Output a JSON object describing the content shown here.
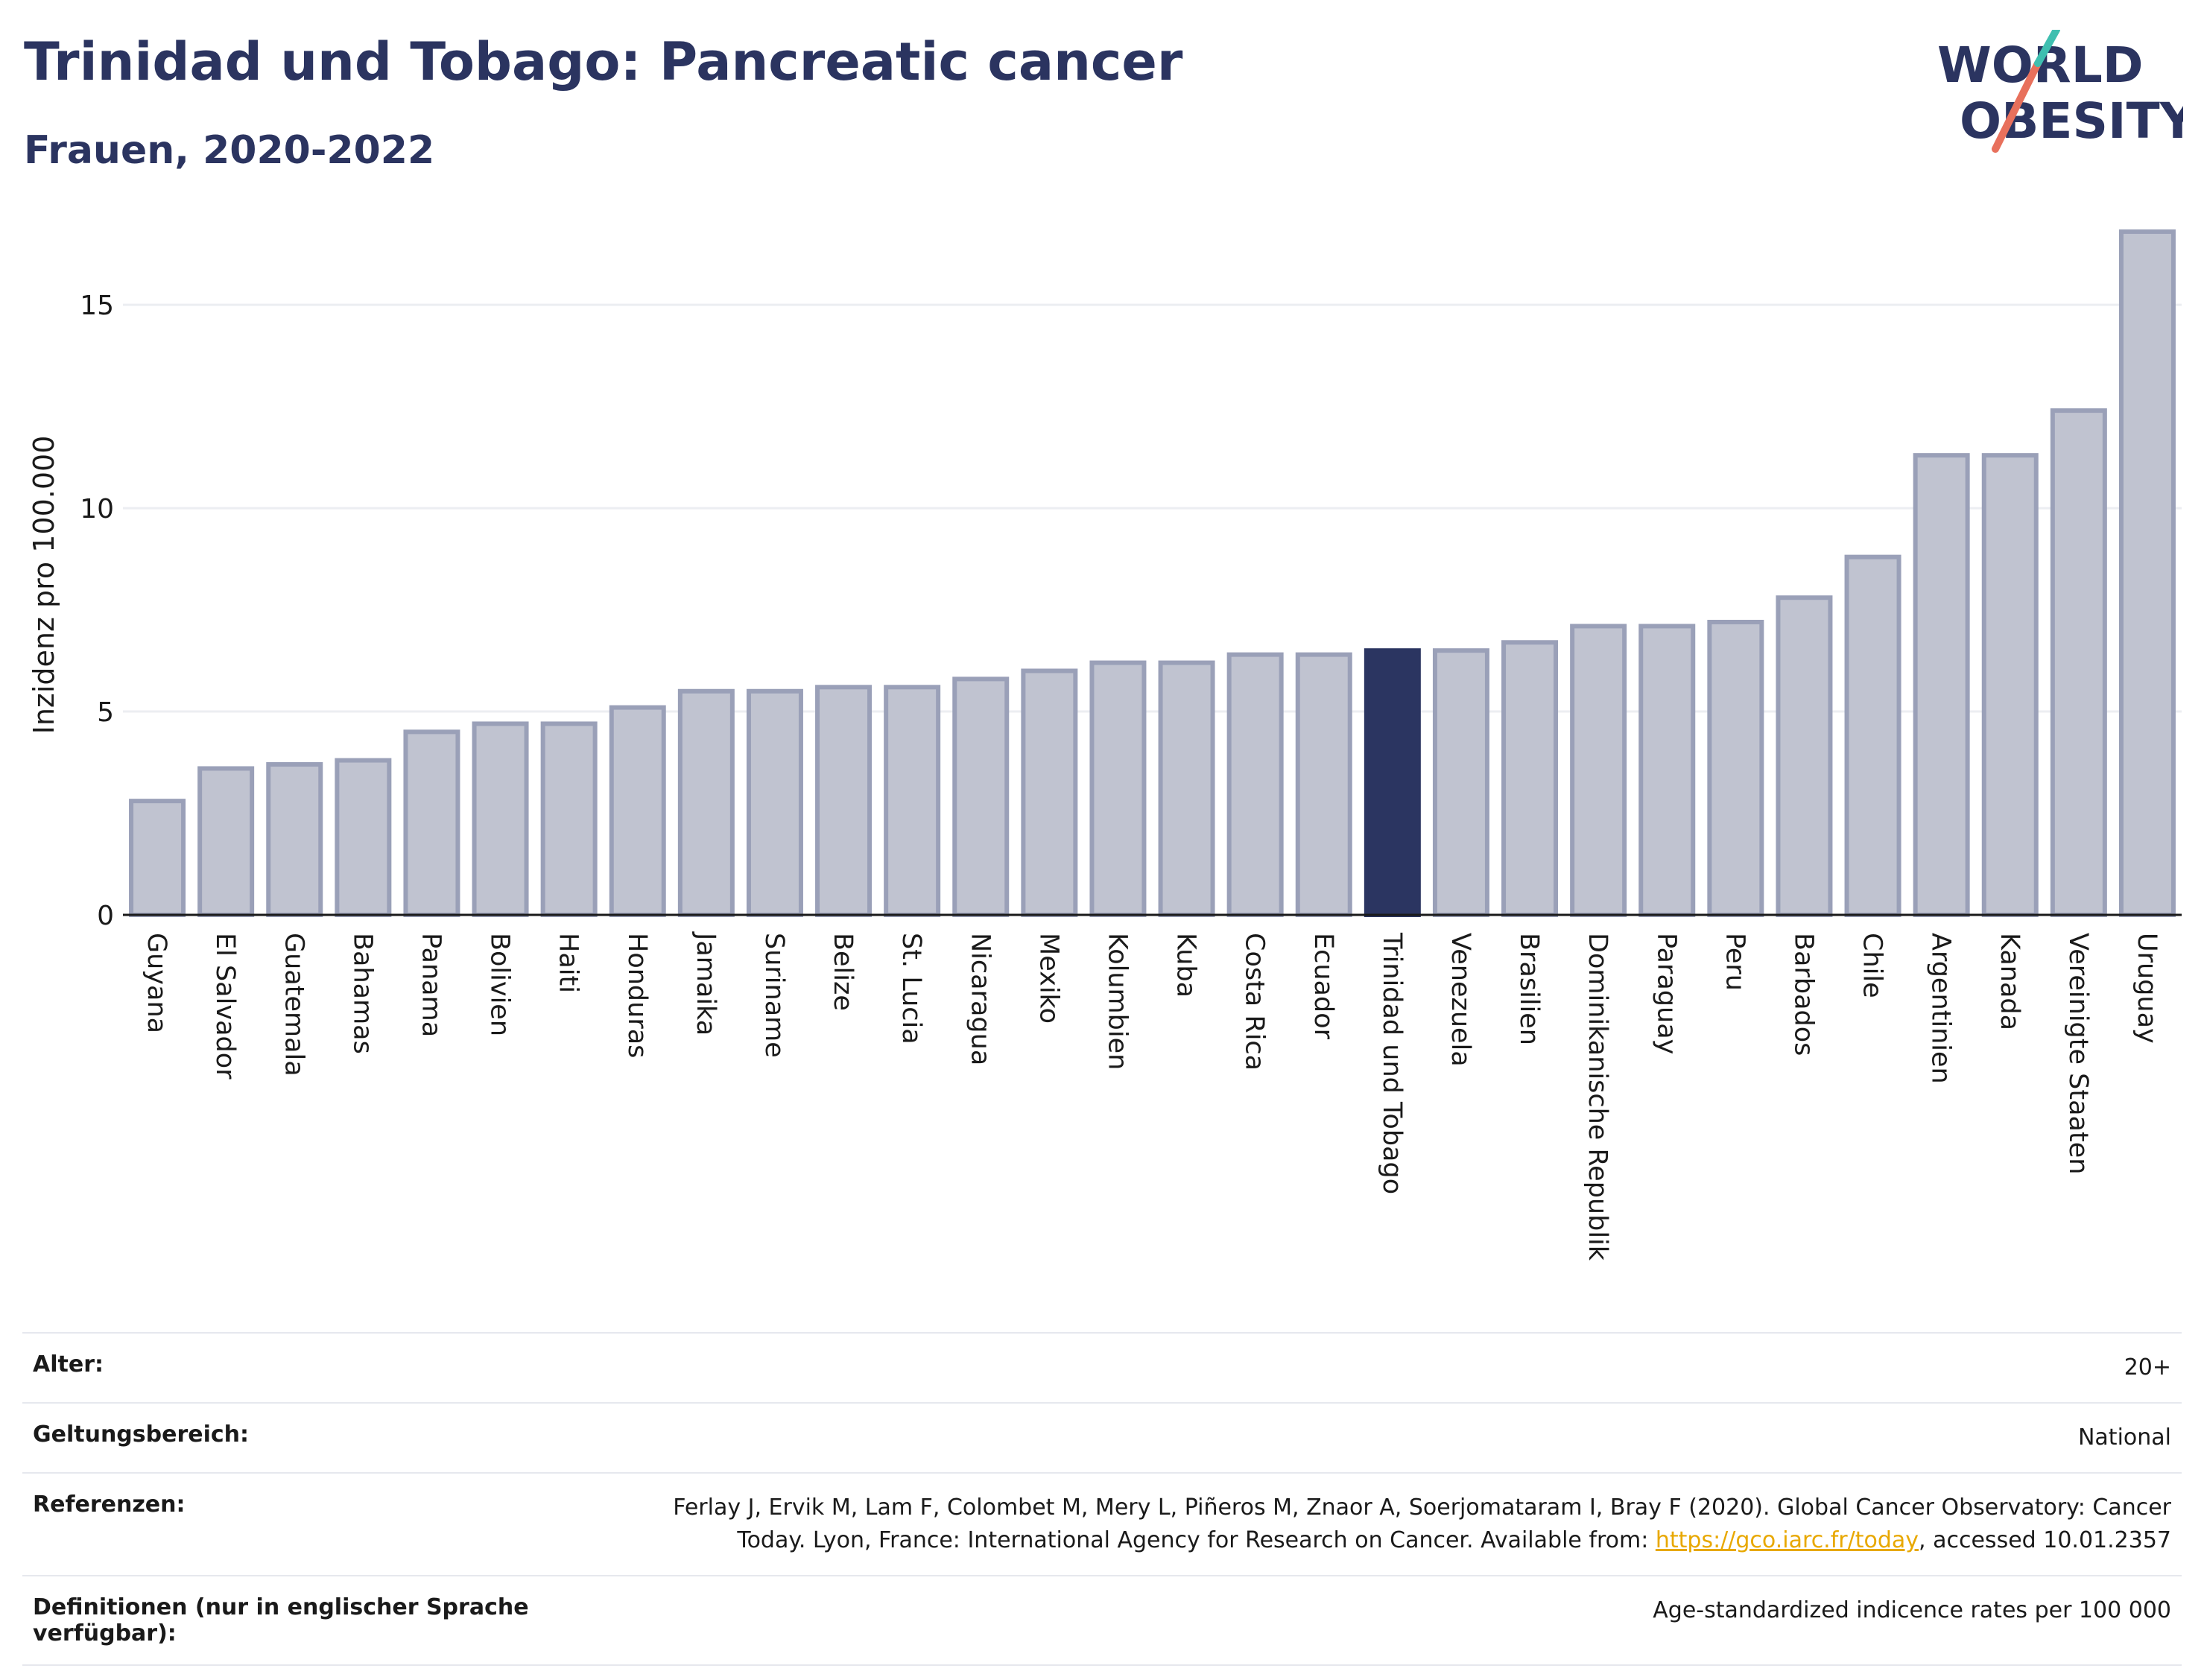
{
  "header": {
    "title": "Trinidad und Tobago: Pancreatic cancer",
    "subtitle": "Frauen, 2020-2022"
  },
  "logo": {
    "line1": "WORLD",
    "line2": "OBESITY",
    "icon": "world-obesity-logo"
  },
  "colors": {
    "bar": "#c0c3d0",
    "bar_border": "#9aa0b8",
    "highlight": "#2b3561",
    "text": "#2b3460",
    "grid": "#eceef2"
  },
  "chart_data": {
    "type": "bar",
    "title": "Trinidad und Tobago: Pancreatic cancer",
    "ylabel": "Inzidenz pro 100.000",
    "ylim": [
      0,
      17
    ],
    "yticks": [
      0,
      5,
      10,
      15
    ],
    "grid": true,
    "highlight": "Trinidad und Tobago",
    "categories": [
      "Guyana",
      "El Salvador",
      "Guatemala",
      "Bahamas",
      "Panama",
      "Bolivien",
      "Haiti",
      "Honduras",
      "Jamaika",
      "Suriname",
      "Belize",
      "St. Lucia",
      "Nicaragua",
      "Mexiko",
      "Kolumbien",
      "Kuba",
      "Costa Rica",
      "Ecuador",
      "Trinidad und Tobago",
      "Venezuela",
      "Brasilien",
      "Dominikanische Republik",
      "Paraguay",
      "Peru",
      "Barbados",
      "Chile",
      "Argentinien",
      "Kanada",
      "Vereinigte Staaten",
      "Uruguay"
    ],
    "values": [
      2.8,
      3.6,
      3.7,
      3.8,
      4.5,
      4.7,
      4.7,
      5.1,
      5.5,
      5.5,
      5.6,
      5.6,
      5.8,
      6.0,
      6.2,
      6.2,
      6.4,
      6.4,
      6.5,
      6.5,
      6.7,
      7.1,
      7.1,
      7.2,
      7.8,
      8.8,
      11.3,
      11.3,
      12.4,
      16.8
    ]
  },
  "meta": [
    {
      "key": "Alter:",
      "value": "20+"
    },
    {
      "key": "Geltungsbereich:",
      "value": "National"
    },
    {
      "key": "Referenzen:",
      "value_line1": "Ferlay J, Ervik M, Lam F, Colombet M, Mery L, Piñeros M, Znaor A, Soerjomataram I, Bray F (2020). Global Cancer Observatory: Cancer",
      "value_line2_pre": "Today. Lyon, France: International Agency for Research on Cancer. Available from: ",
      "link": "https://gco.iarc.fr/today",
      "value_line2_post": ", accessed 10.01.2357"
    },
    {
      "key": "Definitionen (nur in englischer Sprache verfügbar):",
      "value": "Age-standardized indicence rates per 100 000"
    }
  ]
}
